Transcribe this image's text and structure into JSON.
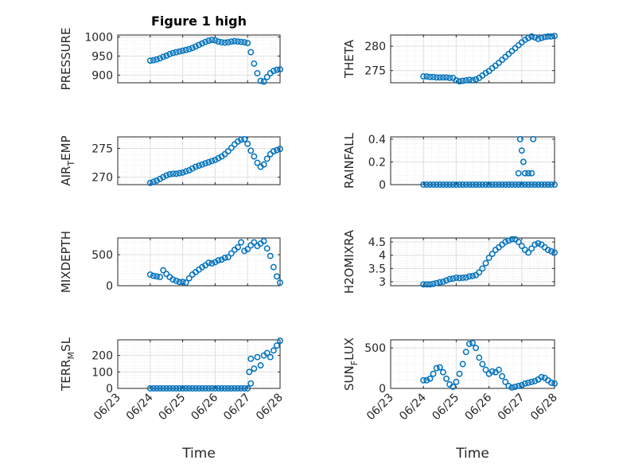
{
  "colors": {
    "marker": "#0072BD",
    "grid_major": "#dfdfdf",
    "grid_minor": "#e8e8e8",
    "axis": "#262626"
  },
  "chart_data": [
    {
      "type": "scatter",
      "title": "Figure 1 high",
      "ylabel": "PRESSURE",
      "xlabel": "",
      "ylim": [
        880,
        1005
      ],
      "yticks": [
        900,
        950,
        1000
      ],
      "ytick_labels": [
        "900",
        "950",
        "1000"
      ],
      "grid": "on",
      "series": [
        {
          "x": [
            24.0,
            24.1,
            24.2,
            24.3,
            24.4,
            24.5,
            24.6,
            24.7,
            24.8,
            24.9,
            25.0,
            25.1,
            25.2,
            25.3,
            25.4,
            25.5,
            25.6,
            25.7,
            25.8,
            25.9,
            26.0,
            26.1,
            26.2,
            26.3,
            26.4,
            26.5,
            26.6,
            26.7,
            26.8,
            26.9,
            27.0,
            27.1,
            27.2,
            27.3,
            27.4,
            27.5,
            27.6,
            27.7,
            27.8,
            27.9,
            28.0
          ],
          "y": [
            938,
            939,
            941,
            944,
            948,
            951,
            955,
            958,
            960,
            962,
            964,
            966,
            968,
            971,
            975,
            979,
            983,
            987,
            990,
            992,
            991,
            988,
            986,
            985,
            986,
            988,
            989,
            988,
            987,
            986,
            984,
            960,
            930,
            905,
            885,
            883,
            895,
            905,
            911,
            914,
            915
          ]
        }
      ]
    },
    {
      "type": "scatter",
      "title": "",
      "ylabel": "THETA",
      "xlabel": "",
      "ylim": [
        272.5,
        282.3
      ],
      "yticks": [
        275,
        280
      ],
      "ytick_labels": [
        "275",
        "280"
      ],
      "grid": "on",
      "series": [
        {
          "x": [
            24.0,
            24.1,
            24.2,
            24.3,
            24.4,
            24.5,
            24.6,
            24.7,
            24.8,
            24.9,
            25.0,
            25.1,
            25.2,
            25.3,
            25.4,
            25.5,
            25.6,
            25.7,
            25.8,
            25.9,
            26.0,
            26.1,
            26.2,
            26.3,
            26.4,
            26.5,
            26.6,
            26.7,
            26.8,
            26.9,
            27.0,
            27.1,
            27.2,
            27.3,
            27.4,
            27.5,
            27.6,
            27.7,
            27.8,
            27.9,
            28.0
          ],
          "y": [
            273.8,
            273.8,
            273.7,
            273.7,
            273.6,
            273.6,
            273.6,
            273.6,
            273.5,
            273.5,
            273.0,
            272.8,
            272.9,
            273.0,
            273.1,
            273.0,
            273.2,
            273.5,
            274.0,
            274.5,
            274.9,
            275.5,
            276.0,
            276.6,
            277.2,
            277.8,
            278.4,
            279.0,
            279.6,
            280.2,
            280.8,
            281.3,
            281.7,
            282.0,
            281.8,
            281.5,
            281.7,
            281.9,
            282.0,
            282.0,
            282.1
          ]
        }
      ]
    },
    {
      "type": "scatter",
      "title": "",
      "ylabel": "AIR_TEMP",
      "ylabel_main": "AIR",
      "ylabel_sub": "T",
      "ylabel_rest": "EMP",
      "xlabel": "",
      "ylim": [
        268.7,
        277
      ],
      "yticks": [
        270,
        275
      ],
      "ytick_labels": [
        "270",
        "275"
      ],
      "grid": "on",
      "series": [
        {
          "x": [
            24.0,
            24.1,
            24.2,
            24.3,
            24.4,
            24.5,
            24.6,
            24.7,
            24.8,
            24.9,
            25.0,
            25.1,
            25.2,
            25.3,
            25.4,
            25.5,
            25.6,
            25.7,
            25.8,
            25.9,
            26.0,
            26.1,
            26.2,
            26.3,
            26.4,
            26.5,
            26.6,
            26.7,
            26.8,
            26.9,
            27.0,
            27.1,
            27.2,
            27.3,
            27.4,
            27.5,
            27.6,
            27.7,
            27.8,
            27.9,
            28.0
          ],
          "y": [
            269.0,
            269.2,
            269.4,
            269.7,
            270.0,
            270.3,
            270.5,
            270.6,
            270.6,
            270.7,
            270.8,
            271.0,
            271.2,
            271.5,
            271.8,
            272.0,
            272.2,
            272.4,
            272.6,
            272.8,
            273.0,
            273.3,
            273.6,
            274.0,
            274.5,
            275.1,
            275.7,
            276.2,
            276.5,
            276.6,
            275.8,
            274.6,
            273.6,
            272.5,
            271.8,
            272.2,
            273.2,
            274.0,
            274.5,
            274.7,
            274.9
          ]
        }
      ]
    },
    {
      "type": "scatter",
      "title": "",
      "ylabel": "RAINFALL",
      "xlabel": "",
      "ylim": [
        0,
        0.42
      ],
      "yticks": [
        0,
        0.2,
        0.4
      ],
      "ytick_labels": [
        "0",
        "0.2",
        "0.4"
      ],
      "grid": "on",
      "series": [
        {
          "x": [
            24.0,
            24.1,
            24.2,
            24.3,
            24.4,
            24.5,
            24.6,
            24.7,
            24.8,
            24.9,
            25.0,
            25.1,
            25.2,
            25.3,
            25.4,
            25.5,
            25.6,
            25.7,
            25.8,
            25.9,
            26.0,
            26.1,
            26.2,
            26.3,
            26.4,
            26.5,
            26.6,
            26.7,
            26.8,
            26.9,
            27.0,
            27.1,
            27.2,
            27.3,
            27.4,
            27.5,
            27.6,
            27.7,
            27.8,
            27.9,
            28.0,
            26.9,
            26.95,
            27.0,
            27.05,
            27.1,
            27.2,
            27.3,
            27.35
          ],
          "y": [
            0,
            0,
            0,
            0,
            0,
            0,
            0,
            0,
            0,
            0,
            0,
            0,
            0,
            0,
            0,
            0,
            0,
            0,
            0,
            0,
            0,
            0,
            0,
            0,
            0,
            0,
            0,
            0,
            0,
            0,
            0,
            0,
            0,
            0,
            0,
            0,
            0,
            0,
            0,
            0,
            0,
            0.1,
            0.4,
            0.3,
            0.2,
            0.1,
            0.1,
            0.1,
            0.4
          ]
        }
      ]
    },
    {
      "type": "scatter",
      "title": "",
      "ylabel": "MIXDEPTH",
      "xlabel": "",
      "ylim": [
        0,
        770
      ],
      "yticks": [
        0,
        500
      ],
      "ytick_labels": [
        "0",
        "500"
      ],
      "grid": "on",
      "series": [
        {
          "x": [
            24.0,
            24.1,
            24.2,
            24.3,
            24.4,
            24.5,
            24.6,
            24.7,
            24.8,
            24.9,
            25.0,
            25.1,
            25.2,
            25.3,
            25.4,
            25.5,
            25.6,
            25.7,
            25.8,
            25.9,
            26.0,
            26.1,
            26.2,
            26.3,
            26.4,
            26.5,
            26.6,
            26.7,
            26.8,
            26.9,
            27.0,
            27.1,
            27.2,
            27.3,
            27.4,
            27.5,
            27.6,
            27.7,
            27.8,
            27.9,
            28.0
          ],
          "y": [
            180,
            160,
            150,
            140,
            250,
            190,
            140,
            100,
            80,
            60,
            60,
            50,
            120,
            180,
            220,
            260,
            300,
            330,
            370,
            360,
            380,
            410,
            420,
            450,
            460,
            520,
            580,
            620,
            700,
            560,
            590,
            650,
            700,
            640,
            680,
            720,
            600,
            480,
            300,
            150,
            50
          ]
        }
      ]
    },
    {
      "type": "scatter",
      "title": "",
      "ylabel": "H2OMIXRA",
      "xlabel": "",
      "ylim": [
        2.85,
        4.65
      ],
      "yticks": [
        3,
        3.5,
        4,
        4.5
      ],
      "ytick_labels": [
        "3",
        "3.5",
        "4",
        "4.5"
      ],
      "grid": "on",
      "series": [
        {
          "x": [
            24.0,
            24.1,
            24.2,
            24.3,
            24.4,
            24.5,
            24.6,
            24.7,
            24.8,
            24.9,
            25.0,
            25.1,
            25.2,
            25.3,
            25.4,
            25.5,
            25.6,
            25.7,
            25.8,
            25.9,
            26.0,
            26.1,
            26.2,
            26.3,
            26.4,
            26.5,
            26.6,
            26.7,
            26.8,
            26.9,
            27.0,
            27.1,
            27.2,
            27.3,
            27.4,
            27.5,
            27.6,
            27.7,
            27.8,
            27.9,
            28.0
          ],
          "y": [
            2.9,
            2.9,
            2.9,
            2.92,
            2.95,
            2.98,
            3.0,
            3.05,
            3.1,
            3.12,
            3.15,
            3.14,
            3.15,
            3.16,
            3.2,
            3.22,
            3.25,
            3.35,
            3.5,
            3.7,
            3.9,
            4.05,
            4.2,
            4.3,
            4.4,
            4.5,
            4.55,
            4.6,
            4.6,
            4.5,
            4.35,
            4.2,
            4.1,
            4.25,
            4.4,
            4.45,
            4.4,
            4.3,
            4.2,
            4.15,
            4.1
          ]
        }
      ]
    },
    {
      "type": "scatter",
      "title": "",
      "ylabel": "TERR_MSL",
      "ylabel_main": "TERR",
      "ylabel_sub": "M",
      "ylabel_rest": "SL",
      "xlabel": "Time",
      "ylim": [
        0,
        295
      ],
      "yticks": [
        0,
        100,
        200
      ],
      "ytick_labels": [
        "0",
        "100",
        "200"
      ],
      "xlim": [
        23.0,
        28.0
      ],
      "xticks": [
        23,
        24,
        25,
        26,
        27,
        28
      ],
      "xtick_labels": [
        "06/23",
        "06/24",
        "06/25",
        "06/26",
        "06/27",
        "06/28"
      ],
      "grid": "on",
      "series": [
        {
          "x": [
            24.0,
            24.1,
            24.2,
            24.3,
            24.4,
            24.5,
            24.6,
            24.7,
            24.8,
            24.9,
            25.0,
            25.1,
            25.2,
            25.3,
            25.4,
            25.5,
            25.6,
            25.7,
            25.8,
            25.9,
            26.0,
            26.1,
            26.2,
            26.3,
            26.4,
            26.5,
            26.6,
            26.7,
            26.8,
            26.9,
            27.0,
            27.1,
            27.2,
            27.3,
            27.4,
            27.5,
            27.6,
            27.7,
            27.8,
            27.9,
            28.0,
            27.05,
            27.1
          ],
          "y": [
            0,
            0,
            0,
            0,
            0,
            0,
            0,
            0,
            0,
            0,
            0,
            0,
            0,
            0,
            0,
            0,
            0,
            0,
            0,
            0,
            0,
            0,
            0,
            0,
            0,
            0,
            0,
            0,
            0,
            0,
            0,
            30,
            120,
            190,
            140,
            200,
            215,
            190,
            230,
            260,
            290,
            100,
            180
          ]
        }
      ]
    },
    {
      "type": "scatter",
      "title": "",
      "ylabel": "SUN_FLUX",
      "ylabel_main": "SUN",
      "ylabel_sub": "F",
      "ylabel_rest": "LUX",
      "xlabel": "Time",
      "ylim": [
        0,
        600
      ],
      "yticks": [
        0,
        500
      ],
      "ytick_labels": [
        "0",
        "500"
      ],
      "xlim": [
        23.0,
        28.0
      ],
      "xticks": [
        23,
        24,
        25,
        26,
        27,
        28
      ],
      "xtick_labels": [
        "06/23",
        "06/24",
        "06/25",
        "06/26",
        "06/27",
        "06/28"
      ],
      "grid": "on",
      "series": [
        {
          "x": [
            24.0,
            24.1,
            24.2,
            24.3,
            24.4,
            24.5,
            24.6,
            24.7,
            24.8,
            24.9,
            25.0,
            25.1,
            25.2,
            25.3,
            25.4,
            25.5,
            25.6,
            25.7,
            25.8,
            25.9,
            26.0,
            26.1,
            26.2,
            26.3,
            26.4,
            26.5,
            26.6,
            26.7,
            26.8,
            26.9,
            27.0,
            27.1,
            27.2,
            27.3,
            27.4,
            27.5,
            27.6,
            27.7,
            27.8,
            27.9,
            28.0
          ],
          "y": [
            100,
            100,
            120,
            180,
            250,
            260,
            200,
            120,
            50,
            20,
            80,
            180,
            300,
            450,
            550,
            560,
            500,
            380,
            300,
            230,
            180,
            210,
            200,
            230,
            150,
            80,
            30,
            10,
            20,
            30,
            40,
            60,
            70,
            80,
            90,
            110,
            140,
            130,
            100,
            70,
            60
          ]
        }
      ]
    }
  ]
}
